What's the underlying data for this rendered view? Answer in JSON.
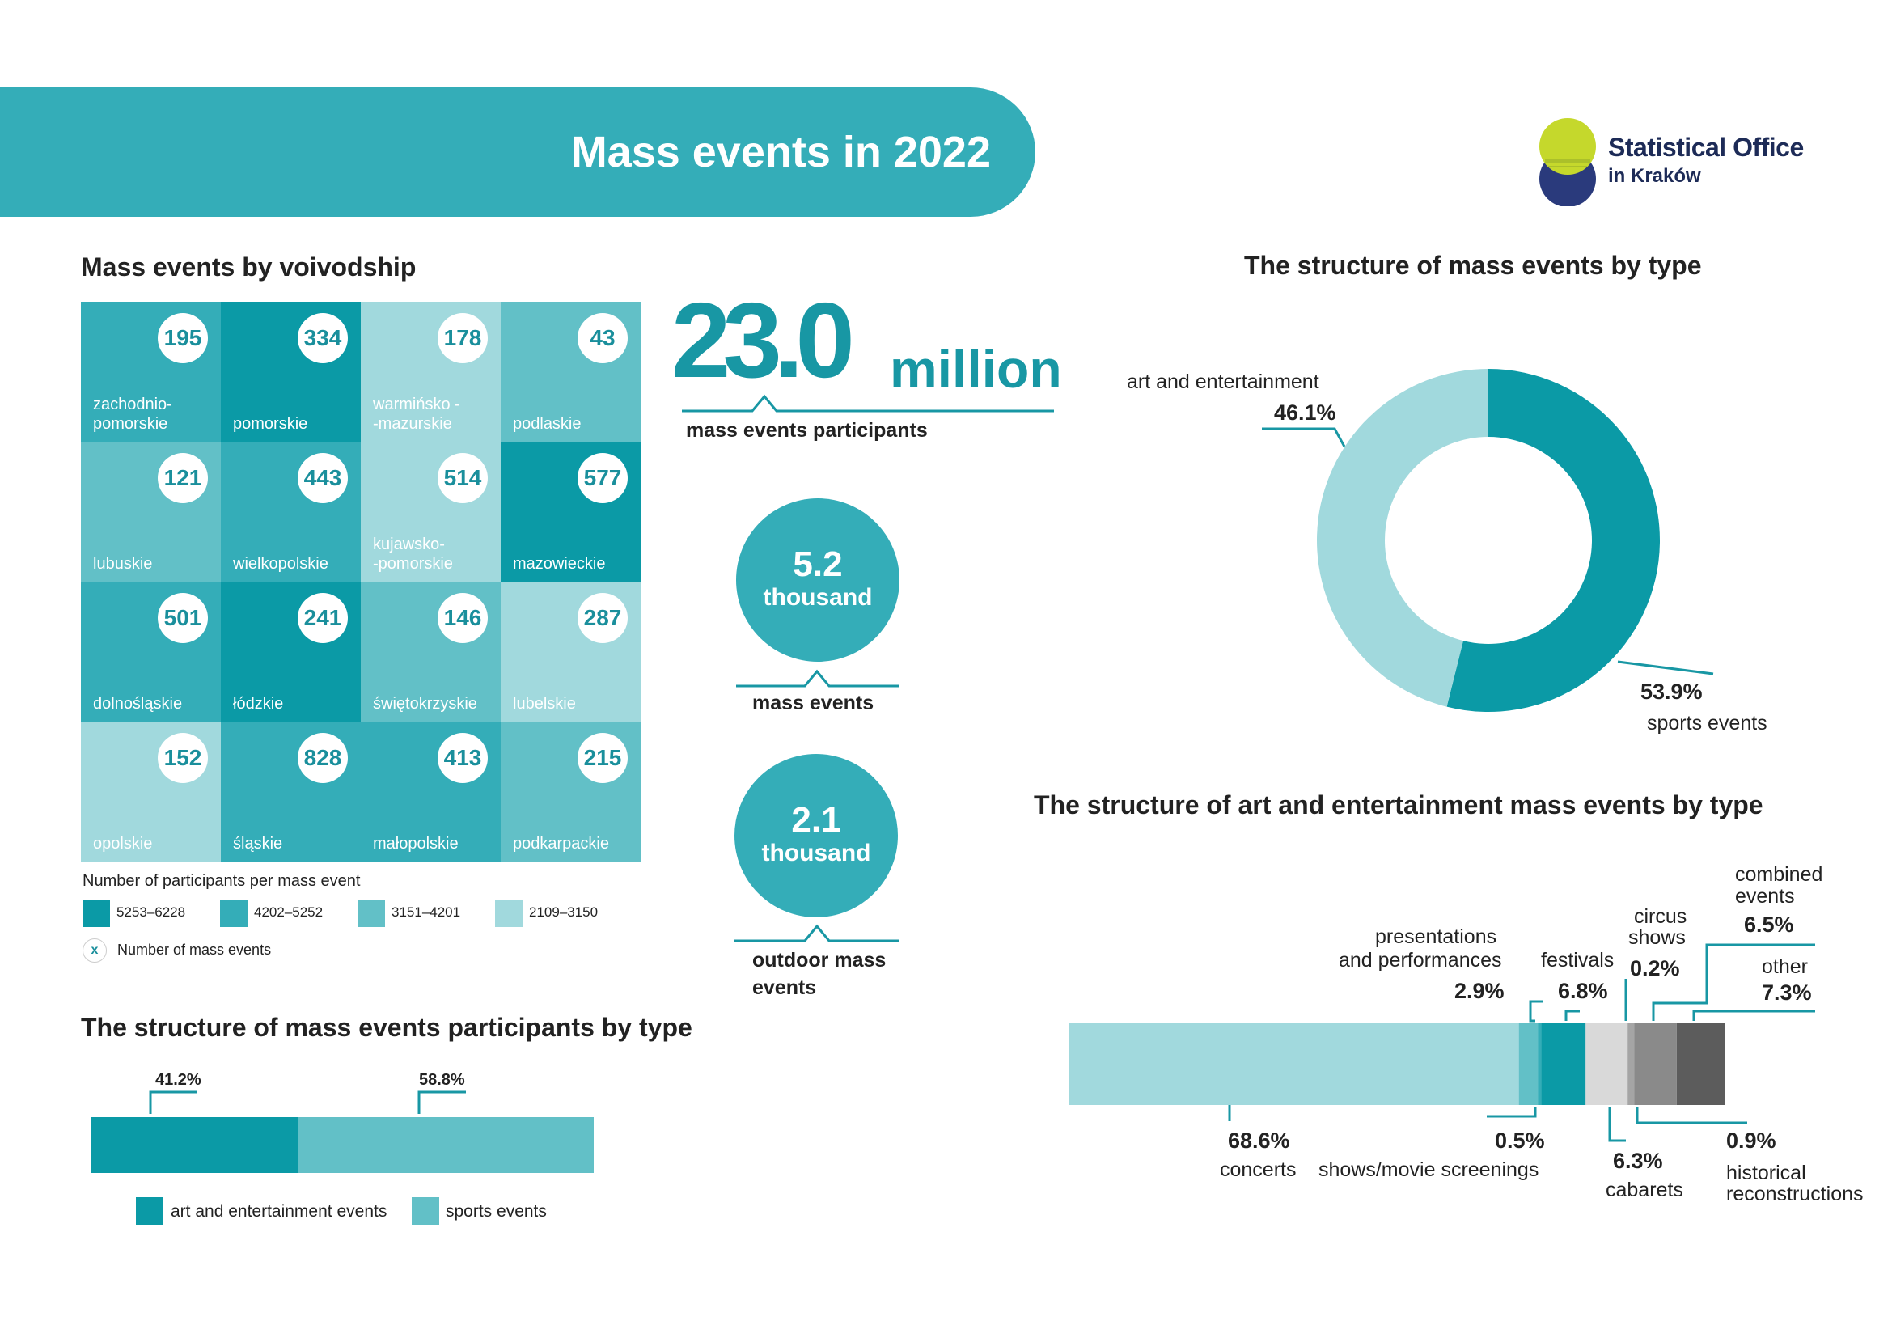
{
  "header": {
    "title": "Mass events in 2022"
  },
  "logo": {
    "line1": "Statistical Office",
    "line2": "in Kraków"
  },
  "colors": {
    "c1": "#0b9aa6",
    "c2": "#34adb8",
    "c3": "#62c0c7",
    "c4": "#a1d9dd",
    "grey1": "#d9d9d9",
    "grey2": "#8a8a8a",
    "grey3": "#5c5c5c"
  },
  "voivodship": {
    "title": "Mass events by voivodship",
    "cells": [
      {
        "name": "zachodnio-\npomorskie",
        "events": "195",
        "cls": 2
      },
      {
        "name": "pomorskie",
        "events": "334",
        "cls": 1
      },
      {
        "name": "warmińsko -\n-mazurskie",
        "events": "178",
        "cls": 4
      },
      {
        "name": "podlaskie",
        "events": "43",
        "cls": 3
      },
      {
        "name": "lubuskie",
        "events": "121",
        "cls": 3
      },
      {
        "name": "wielkopolskie",
        "events": "443",
        "cls": 2
      },
      {
        "name": "kujawsko-\n-pomorskie",
        "events": "514",
        "cls": 4
      },
      {
        "name": "mazowieckie",
        "events": "577",
        "cls": 1
      },
      {
        "name": "dolnośląskie",
        "events": "501",
        "cls": 2
      },
      {
        "name": "łódzkie",
        "events": "241",
        "cls": 1
      },
      {
        "name": "świętokrzyskie",
        "events": "146",
        "cls": 3
      },
      {
        "name": "lubelskie",
        "events": "287",
        "cls": 4
      },
      {
        "name": "opolskie",
        "events": "152",
        "cls": 4
      },
      {
        "name": "śląskie",
        "events": "828",
        "cls": 2
      },
      {
        "name": "małopolskie",
        "events": "413",
        "cls": 2
      },
      {
        "name": "podkarpackie",
        "events": "215",
        "cls": 3
      }
    ],
    "legend_title": "Number of participants per mass event",
    "legend": [
      "5253–6228",
      "4202–5252",
      "3151–4201",
      "2109–3150"
    ],
    "legend_x_symbol": "x",
    "legend_x_label": "Number of mass events"
  },
  "participants": {
    "value": "23.0",
    "unit": "million",
    "label": "mass events participants"
  },
  "events_count": {
    "value": "5.2",
    "unit": "thousand",
    "label": "mass events"
  },
  "outdoor": {
    "value": "2.1",
    "unit": "thousand",
    "label_line1": "outdoor mass",
    "label_line2": "events"
  },
  "chart_data": [
    {
      "type": "pie",
      "title": "The structure of mass events by type",
      "slices": [
        {
          "name": "sports events",
          "value": 53.9,
          "label": "53.9%",
          "color": "#0b9aa6"
        },
        {
          "name": "art and entertainment",
          "value": 46.1,
          "label": "46.1%",
          "color": "#a1d9dd"
        }
      ]
    },
    {
      "type": "bar",
      "title": "The structure of mass events participants by type",
      "orientation": "horizontal-stacked",
      "series": [
        {
          "name": "art and entertainment events",
          "value": 41.2,
          "label": "41.2%",
          "color": "#0b9aa6"
        },
        {
          "name": "sports events",
          "value": 58.8,
          "label": "58.8%",
          "color": "#62c0c7"
        }
      ]
    },
    {
      "type": "bar",
      "title": "The structure of art and entertainment mass events by type",
      "orientation": "horizontal-stacked",
      "series": [
        {
          "name": "concerts",
          "value": 68.6,
          "label": "68.6%",
          "color": "#a1d9dd"
        },
        {
          "name": "presentations and performances",
          "value": 2.9,
          "label": "2.9%",
          "color": "#62c0c7"
        },
        {
          "name": "shows/movie screenings",
          "value": 0.5,
          "label": "0.5%",
          "color": "#34adb8"
        },
        {
          "name": "festivals",
          "value": 6.8,
          "label": "6.8%",
          "color": "#0b9aa6"
        },
        {
          "name": "cabarets",
          "value": 6.3,
          "label": "6.3%",
          "color": "#d9d9d9"
        },
        {
          "name": "circus shows",
          "value": 0.2,
          "label": "0.2%",
          "color": "#b0b0b0"
        },
        {
          "name": "historical reconstructions",
          "value": 0.9,
          "label": "0.9%",
          "color": "#a5a5a5"
        },
        {
          "name": "combined events",
          "value": 6.5,
          "label": "6.5%",
          "color": "#8a8a8a"
        },
        {
          "name": "other",
          "value": 7.3,
          "label": "7.3%",
          "color": "#5c5c5c"
        }
      ]
    }
  ],
  "donut_labels": {
    "art": "art and entertainment",
    "art_pct": "46.1%",
    "sport": "sports events",
    "sport_pct": "53.9%"
  },
  "art_bar_labels": {
    "concerts": "concerts",
    "concerts_pct": "68.6%",
    "presentations_1": "presentations",
    "presentations_2": "and performances",
    "presentations_pct": "2.9%",
    "shows": "shows/movie screenings",
    "shows_pct": "0.5%",
    "festivals": "festivals",
    "festivals_pct": "6.8%",
    "cabarets": "cabarets",
    "cabarets_pct": "6.3%",
    "circus_1": "circus",
    "circus_2": "shows",
    "circus_pct": "0.2%",
    "historical_1": "historical",
    "historical_2": "reconstructions",
    "historical_pct": "0.9%",
    "combined_1": "combined",
    "combined_2": "events",
    "combined_pct": "6.5%",
    "other": "other",
    "other_pct": "7.3%"
  },
  "participants_bar_labels": {
    "art": "art and entertainment events",
    "sport": "sports events",
    "art_pct": "41.2%",
    "sport_pct": "58.8%"
  }
}
